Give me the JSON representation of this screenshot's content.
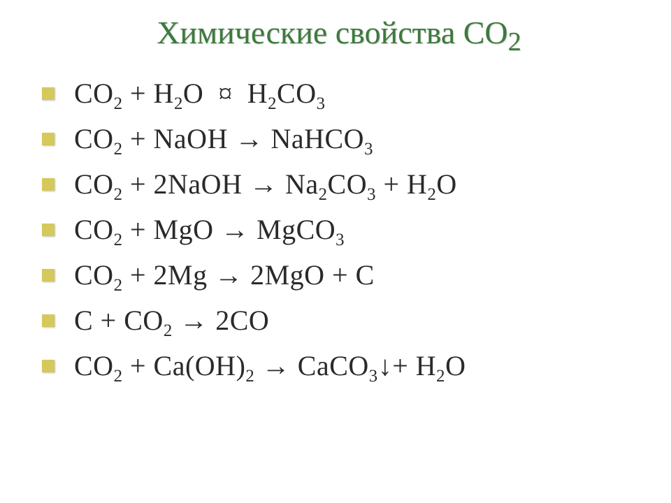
{
  "title": "Химические свойства СО",
  "title_sub": "2",
  "title_color": "#3d7a3d",
  "title_fontsize": 46,
  "bullet_color": "#d4c95a",
  "text_color": "#2a2a2a",
  "eq_fontsize": 40,
  "background": "#ffffff",
  "equations": [
    {
      "html": "CO<sub>2</sub> + H<sub>2</sub>O&nbsp;&nbsp;¤&nbsp;&nbsp;H<sub>2</sub>CO<sub>3</sub>"
    },
    {
      "html": "CO<sub>2</sub> + NaOH <span class='arrow'>&rarr;</span> NaHCO<sub>3</sub>"
    },
    {
      "html": "CO<sub>2</sub> + 2NaOH <span class='arrow'>&rarr;</span> Na<sub>2</sub>CO<sub>3</sub> + H<sub>2</sub>O"
    },
    {
      "html": "CO<sub>2</sub> + MgO <span class='arrow'>&rarr;</span> MgCO<sub>3</sub>"
    },
    {
      "html": "CO<sub>2</sub> + 2Mg <span class='arrow'>&rarr;</span> 2MgO + C"
    },
    {
      "html": "C + CO<sub>2</sub> <span class='arrow'>&rarr;</span> 2CO"
    },
    {
      "html": "CO<sub>2</sub> + Ca(OH)<sub>2</sub> <span class='arrow'>&rarr;</span> CaCO<sub>3</sub>&darr;+ H<sub>2</sub>O"
    }
  ]
}
